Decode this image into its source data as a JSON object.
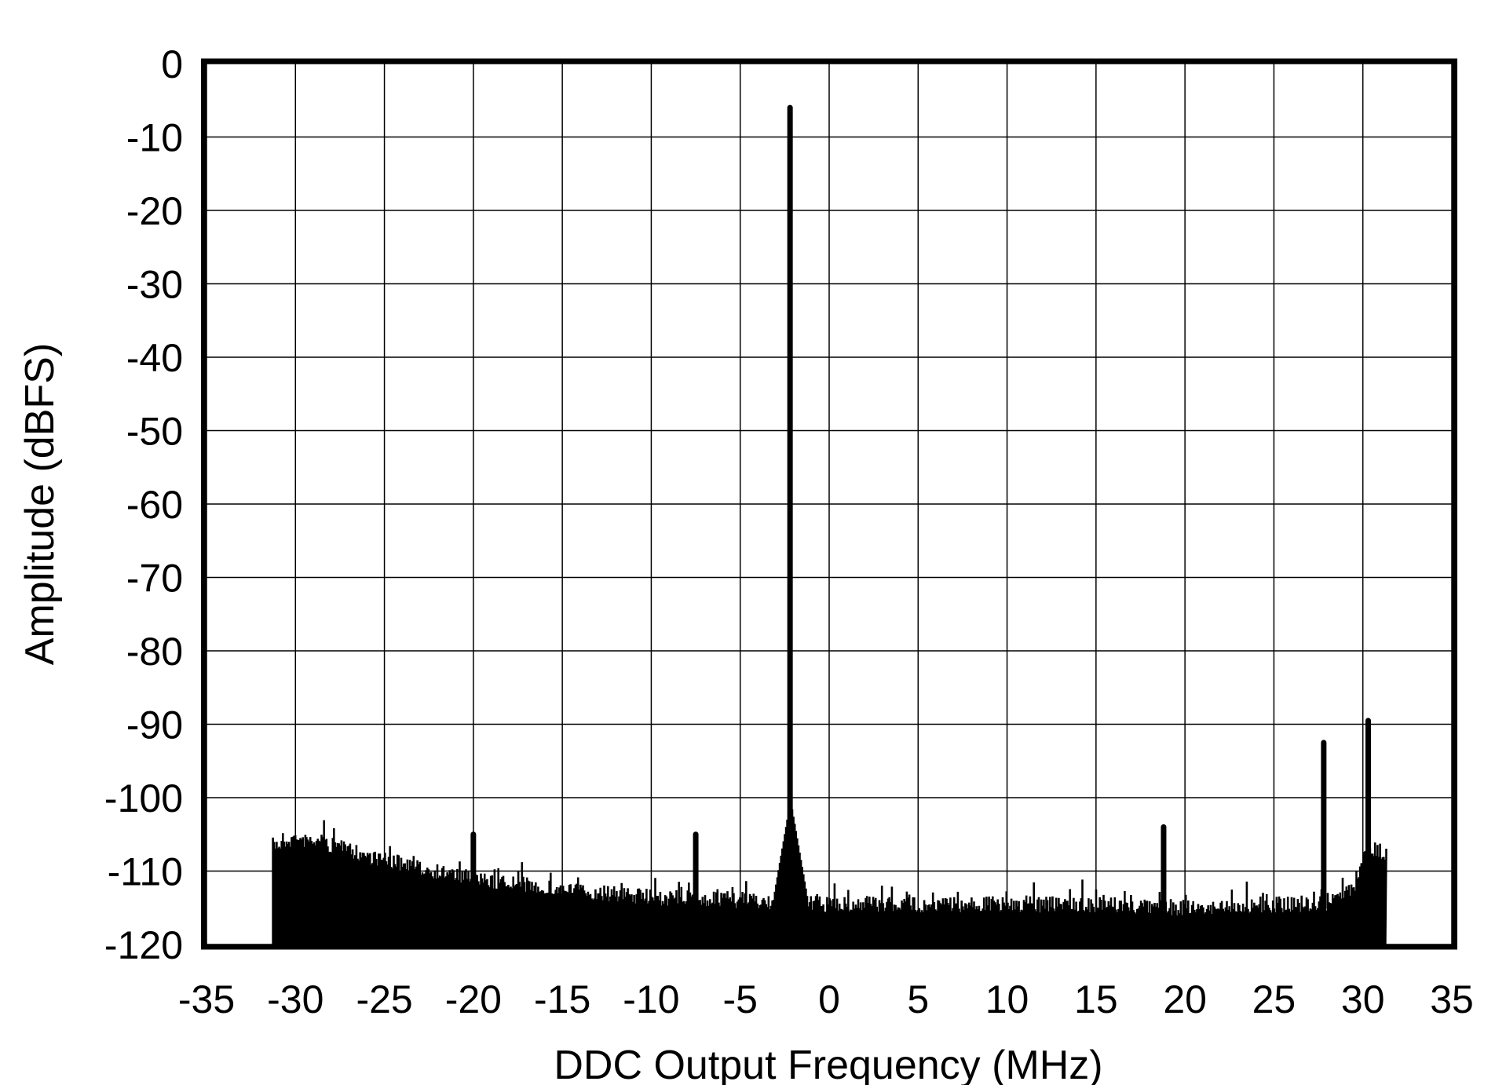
{
  "chart_data": {
    "type": "line",
    "title": "",
    "xlabel": "DDC Output Frequency (MHz)",
    "ylabel": "Amplitude (dBFS)",
    "xlim": [
      -35,
      35
    ],
    "ylim": [
      -120,
      0
    ],
    "xticks": [
      "-35",
      "-30",
      "-25",
      "-20",
      "-15",
      "-10",
      "-5",
      "0",
      "5",
      "10",
      "15",
      "20",
      "25",
      "30",
      "35"
    ],
    "yticks": [
      "0",
      "-10",
      "-20",
      "-30",
      "-40",
      "-50",
      "-60",
      "-70",
      "-80",
      "-90",
      "-100",
      "-110",
      "-120"
    ],
    "grid": true,
    "legend": "none",
    "color": "#000000",
    "data_range_mhz": [
      -31.3,
      31.3
    ],
    "noise_floor": {
      "x": [
        -31.3,
        -30,
        -28,
        -25,
        -22,
        -20,
        -15,
        -10,
        -5,
        0,
        5,
        10,
        15,
        20,
        25,
        28,
        29.5,
        30.2,
        30.8,
        31.3
      ],
      "y": [
        -105.5,
        -104.5,
        -105.5,
        -107.5,
        -109,
        -110,
        -111.5,
        -112.5,
        -113,
        -113.5,
        -113.5,
        -113.5,
        -113.5,
        -114,
        -113.5,
        -113.5,
        -111,
        -106,
        -106,
        -107
      ]
    },
    "spurs": [
      {
        "x": -2.2,
        "y": -6
      },
      {
        "x": -20.0,
        "y": -105
      },
      {
        "x": -7.5,
        "y": -105
      },
      {
        "x": 18.8,
        "y": -104
      },
      {
        "x": 27.8,
        "y": -92.5
      },
      {
        "x": 30.3,
        "y": -89.5
      }
    ]
  }
}
